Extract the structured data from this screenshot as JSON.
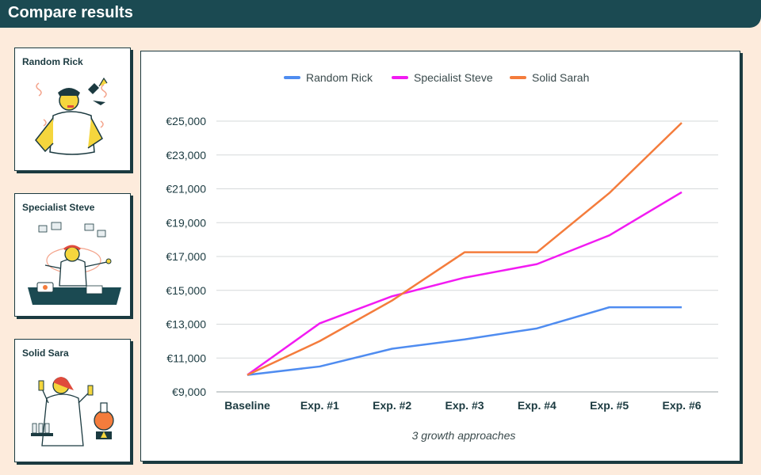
{
  "header": {
    "title": "Compare results"
  },
  "cards": [
    {
      "label": "Random Rick"
    },
    {
      "label": "Specialist Steve"
    },
    {
      "label": "Solid Sara"
    }
  ],
  "chart_data": {
    "type": "line",
    "categories": [
      "Baseline",
      "Exp. #1",
      "Exp. #2",
      "Exp. #3",
      "Exp. #4",
      "Exp. #5",
      "Exp. #6"
    ],
    "series": [
      {
        "name": "Random Rick",
        "color": "#4f8cf0",
        "values": [
          10000,
          10500,
          11550,
          12100,
          12750,
          14000,
          14000
        ]
      },
      {
        "name": "Specialist Steve",
        "color": "#f21bf2",
        "values": [
          10000,
          13050,
          14650,
          15750,
          16550,
          18250,
          20800
        ]
      },
      {
        "name": "Solid Sarah",
        "color": "#f47c3c",
        "values": [
          10000,
          12000,
          14400,
          17250,
          17250,
          20750,
          24900
        ]
      }
    ],
    "yticks": [
      "€9,000",
      "€11,000",
      "€13,000",
      "€15,000",
      "€17,000",
      "€19,000",
      "€21,000",
      "€23,000",
      "€25,000"
    ],
    "ylim": [
      9000,
      25000
    ],
    "xlabel": "3 growth approaches",
    "ylabel": "",
    "legend_position": "top",
    "grid": true
  }
}
